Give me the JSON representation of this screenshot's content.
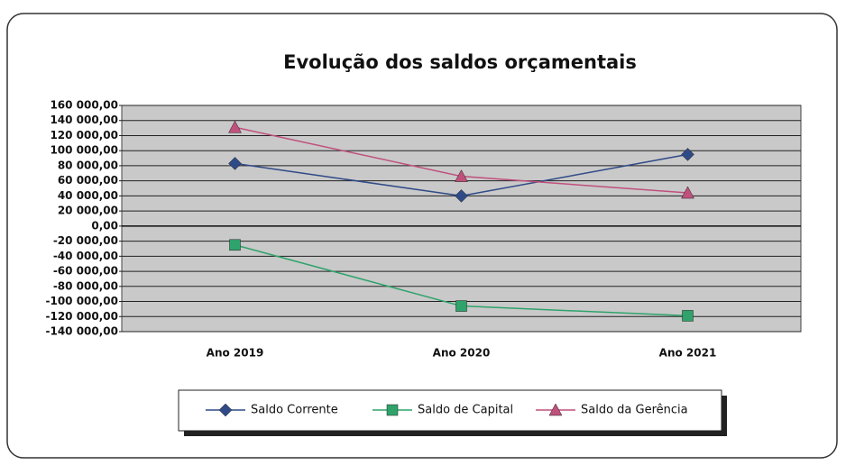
{
  "chart_data": {
    "type": "line",
    "title": "Evolução dos saldos orçamentais",
    "categories": [
      "Ano 2019",
      "Ano 2020",
      "Ano 2021"
    ],
    "series": [
      {
        "name": "Saldo Corrente",
        "color": "#2f4a87",
        "marker": "diamond",
        "values": [
          83000,
          40000,
          95000
        ]
      },
      {
        "name": "Saldo de Capital",
        "color": "#2fa36b",
        "marker": "square",
        "values": [
          -25000,
          -106000,
          -119000
        ]
      },
      {
        "name": "Saldo da Gerência",
        "color": "#c0507c",
        "marker": "triangle",
        "values": [
          131000,
          66000,
          44000
        ]
      }
    ],
    "ylim": [
      -140000,
      160000
    ],
    "yticks": [
      {
        "value": -140000,
        "label": "-140 000,00"
      },
      {
        "value": -120000,
        "label": "-120 000,00"
      },
      {
        "value": -100000,
        "label": "-100 000,00"
      },
      {
        "value": -80000,
        "label": "-80 000,00"
      },
      {
        "value": -60000,
        "label": "-60 000,00"
      },
      {
        "value": -40000,
        "label": "-40 000,00"
      },
      {
        "value": -20000,
        "label": "-20 000,00"
      },
      {
        "value": 0,
        "label": "0,00"
      },
      {
        "value": 20000,
        "label": "20 000,00"
      },
      {
        "value": 40000,
        "label": "40 000,00"
      },
      {
        "value": 60000,
        "label": "60 000,00"
      },
      {
        "value": 80000,
        "label": "80 000,00"
      },
      {
        "value": 100000,
        "label": "100 000,00"
      },
      {
        "value": 120000,
        "label": "120 000,00"
      },
      {
        "value": 140000,
        "label": "140 000,00"
      },
      {
        "value": 160000,
        "label": "160 000,00"
      }
    ],
    "grid": true,
    "legend": "bottom"
  }
}
